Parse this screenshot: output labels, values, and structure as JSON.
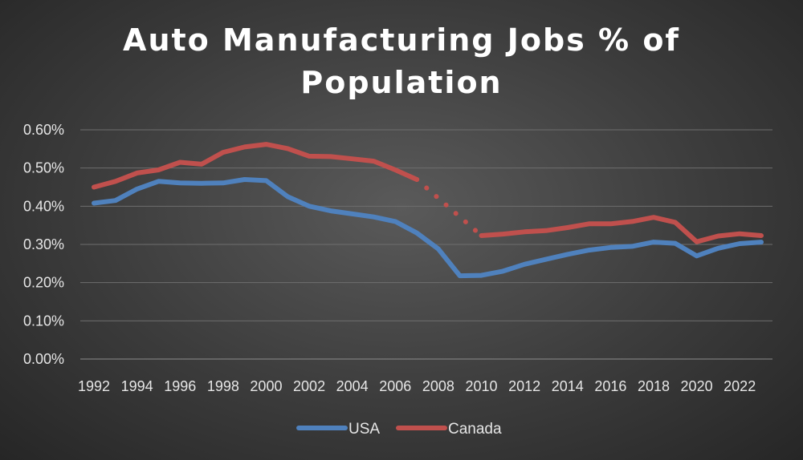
{
  "chart_data": {
    "type": "line",
    "title": "Auto Manufacturing Jobs % of Population",
    "title_lines": [
      "Auto Manufacturing Jobs % of",
      "Population"
    ],
    "xlabel": "",
    "ylabel": "",
    "ylim": [
      0,
      0.6
    ],
    "y_ticks": [
      0.0,
      0.1,
      0.2,
      0.3,
      0.4,
      0.5,
      0.6
    ],
    "y_tick_labels": [
      "0.00%",
      "0.10%",
      "0.20%",
      "0.30%",
      "0.40%",
      "0.50%",
      "0.60%"
    ],
    "x": [
      1992,
      1993,
      1994,
      1995,
      1996,
      1997,
      1998,
      1999,
      2000,
      2001,
      2002,
      2003,
      2004,
      2005,
      2006,
      2007,
      2008,
      2009,
      2010,
      2011,
      2012,
      2013,
      2014,
      2015,
      2016,
      2017,
      2018,
      2019,
      2020,
      2021,
      2022,
      2023
    ],
    "x_tick_labels": [
      "1992",
      "1994",
      "1996",
      "1998",
      "2000",
      "2002",
      "2004",
      "2006",
      "2008",
      "2010",
      "2012",
      "2014",
      "2016",
      "2018",
      "2020",
      "2022"
    ],
    "grid": true,
    "legend_position": "bottom",
    "series": [
      {
        "name": "USA",
        "color": "#4f81bd",
        "values": [
          0.408,
          0.415,
          0.445,
          0.465,
          0.461,
          0.46,
          0.461,
          0.47,
          0.467,
          0.425,
          0.4,
          0.388,
          0.38,
          0.372,
          0.36,
          0.33,
          0.288,
          0.218,
          0.219,
          0.23,
          0.248,
          0.261,
          0.274,
          0.285,
          0.292,
          0.295,
          0.306,
          0.303,
          0.27,
          0.29,
          0.302,
          0.306
        ]
      },
      {
        "name": "Canada",
        "color": "#c0504d",
        "values": [
          0.45,
          0.465,
          0.487,
          0.495,
          0.515,
          0.51,
          0.541,
          0.555,
          0.562,
          0.551,
          0.531,
          0.53,
          0.524,
          0.518,
          0.495,
          0.47,
          null,
          null,
          0.323,
          0.327,
          0.333,
          0.336,
          0.344,
          0.354,
          0.354,
          0.36,
          0.371,
          0.358,
          0.307,
          0.322,
          0.328,
          0.323
        ],
        "gap_style": "dotted"
      }
    ]
  }
}
